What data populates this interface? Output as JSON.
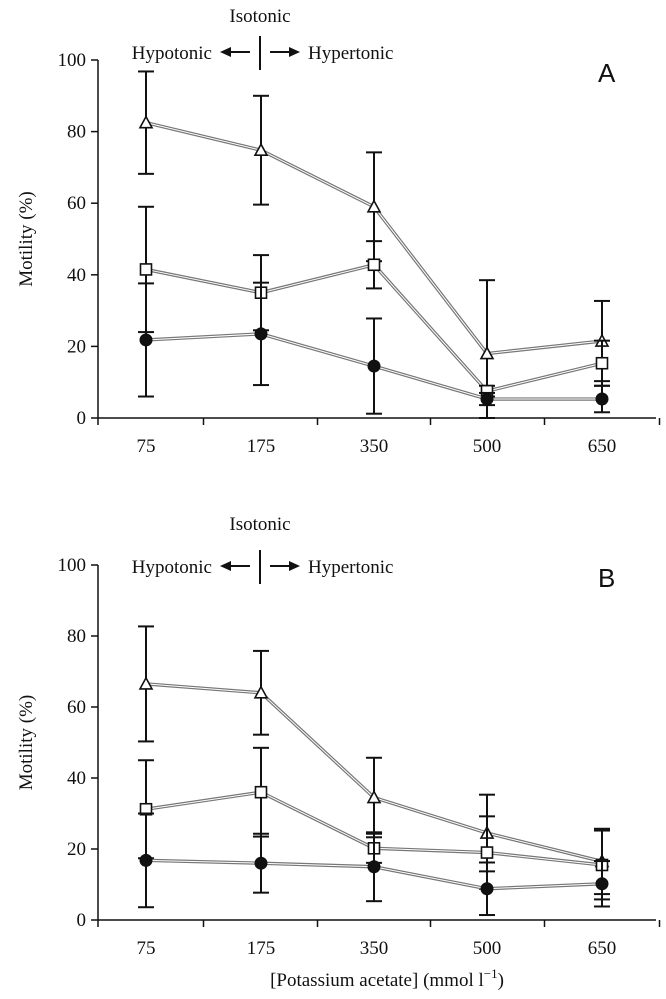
{
  "figure": {
    "xlabel_main": "[Potassium acetate] (mmol l",
    "xlabel_sup": "−1",
    "xlabel_close": ")"
  },
  "chart_data": [
    {
      "type": "line",
      "panel_label": "A",
      "ylabel": "Motility (%)",
      "ylim": [
        0,
        100
      ],
      "yticks": [
        "0",
        "20",
        "40",
        "60",
        "80",
        "100"
      ],
      "categories": [
        "75",
        "175",
        "350",
        "500",
        "650"
      ],
      "annotations": {
        "isotonic": "Isotonic",
        "hypotonic": "Hypotonic",
        "hypertonic": "Hypertonic"
      },
      "series": [
        {
          "marker": "triangle",
          "values": [
            82.5,
            74.8,
            59,
            18,
            21.5
          ],
          "errors": [
            14.3,
            15.2,
            15.2,
            20.5,
            11.2
          ]
        },
        {
          "marker": "square",
          "values": [
            41.5,
            35,
            42.8,
            7.5,
            15.3
          ],
          "errors": [
            17.5,
            10.5,
            6.6,
            1.5,
            6.3
          ]
        },
        {
          "marker": "circle",
          "values": [
            21.8,
            23.5,
            14.5,
            5.3,
            5.3
          ],
          "errors": [
            15.8,
            14.3,
            13.3,
            1.7,
            3.7
          ]
        }
      ]
    },
    {
      "type": "line",
      "panel_label": "B",
      "ylabel": "Motility (%)",
      "ylim": [
        0,
        100
      ],
      "yticks": [
        "0",
        "20",
        "40",
        "60",
        "80",
        "100"
      ],
      "categories": [
        "75",
        "175",
        "350",
        "500",
        "650"
      ],
      "annotations": {
        "isotonic": "Isotonic",
        "hypotonic": "Hypotonic",
        "hypertonic": "Hypertonic"
      },
      "series": [
        {
          "marker": "triangle",
          "values": [
            66.5,
            64,
            34.5,
            24.5,
            16.5
          ],
          "errors": [
            16.2,
            11.8,
            11.2,
            10.8,
            9.2
          ]
        },
        {
          "marker": "square",
          "values": [
            31.2,
            36,
            20.2,
            19,
            15.5
          ],
          "errors": [
            13.8,
            12.5,
            4.1,
            10.2,
            9.7
          ]
        },
        {
          "marker": "circle",
          "values": [
            16.8,
            16,
            15,
            8.8,
            10.2
          ],
          "errors": [
            13.2,
            8.3,
            9.7,
            7.4,
            6.4
          ]
        }
      ]
    }
  ]
}
